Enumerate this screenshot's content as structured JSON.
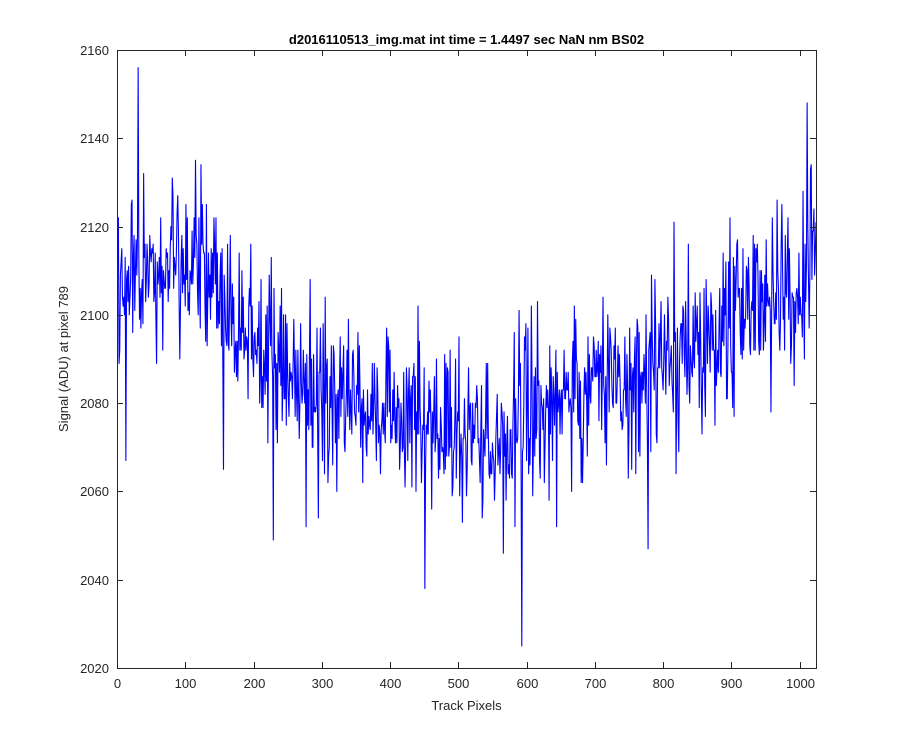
{
  "chart_data": {
    "type": "line",
    "title": "d2016110513_img.mat int time = 1.4497 sec  NaN nm BS02",
    "xlabel": "Track Pixels",
    "ylabel": "Signal (ADU) at pixel 789",
    "xlim": [
      0,
      1024
    ],
    "ylim": [
      2020,
      2160
    ],
    "xticks": [
      0,
      100,
      200,
      300,
      400,
      500,
      600,
      700,
      800,
      900,
      1000
    ],
    "yticks": [
      2020,
      2040,
      2060,
      2080,
      2100,
      2120,
      2140,
      2160
    ],
    "xtick_labels": [
      "0",
      "100",
      "200",
      "300",
      "400",
      "500",
      "600",
      "700",
      "800",
      "900",
      "1000"
    ],
    "ytick_labels": [
      "2020",
      "2040",
      "2060",
      "2080",
      "2100",
      "2120",
      "2140",
      "2160"
    ],
    "grid": false,
    "line_color": "#0000ff",
    "axes_color": "#262626",
    "series": [
      {
        "name": "signal",
        "x_start": 1,
        "x_step": 1,
        "trend_anchors": {
          "x": [
            0,
            30,
            100,
            150,
            200,
            300,
            400,
            500,
            600,
            700,
            800,
            900,
            960,
            1000,
            1024
          ],
          "y": [
            2105,
            2106,
            2112,
            2108,
            2092,
            2082,
            2078,
            2072,
            2077,
            2083,
            2089,
            2101,
            2104,
            2106,
            2120
          ]
        },
        "noise_std": 10,
        "random_seed": 789,
        "notable_points": [
          {
            "x": 31,
            "y": 2156
          },
          {
            "x": 30,
            "y": 2118
          },
          {
            "x": 13,
            "y": 2067
          },
          {
            "x": 156,
            "y": 2065
          },
          {
            "x": 229,
            "y": 2049
          },
          {
            "x": 451,
            "y": 2038
          },
          {
            "x": 593,
            "y": 2025
          },
          {
            "x": 778,
            "y": 2047
          },
          {
            "x": 1011,
            "y": 2148
          },
          {
            "x": 1016,
            "y": 2133
          }
        ]
      }
    ]
  }
}
